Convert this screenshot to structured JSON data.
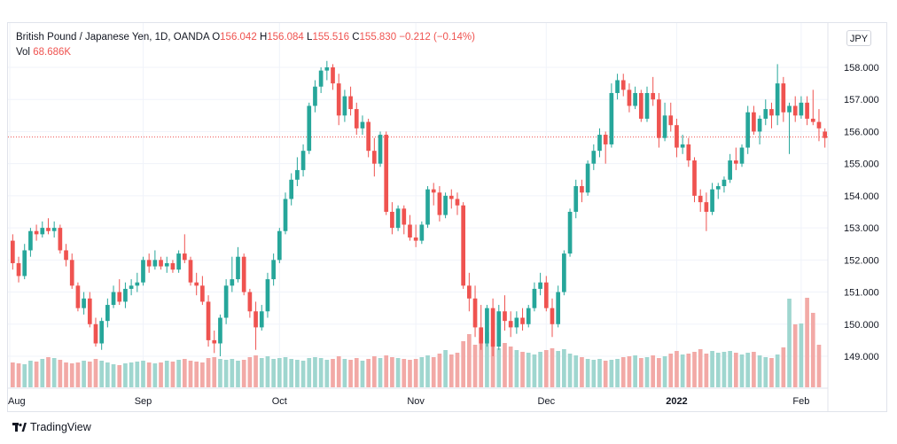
{
  "legend": {
    "symbol": "British Pound / Japanese Yen, 1D, OANDA",
    "o_label": "O",
    "o_val": "156.042",
    "h_label": "H",
    "h_val": "156.084",
    "l_label": "L",
    "l_val": "155.516",
    "c_label": "C",
    "c_val": "155.830",
    "chg": "−0.212 (−0.14%)",
    "vol_label": "Vol",
    "vol_val": "68.686K"
  },
  "currency_button": "JPY",
  "brand": "TradingView",
  "colors": {
    "up": "#26a69a",
    "down": "#ef5350",
    "vol_up": "#9fd6cf",
    "vol_down": "#f2a9a6",
    "grid": "#f0f3fa",
    "axis_text": "#131722"
  },
  "chart_data": {
    "type": "candlestick",
    "price_axis": {
      "ticks": [
        "149.000",
        "150.000",
        "151.000",
        "152.000",
        "153.000",
        "154.000",
        "155.000",
        "156.000",
        "157.000",
        "158.000"
      ],
      "range": [
        148.4,
        158.9
      ]
    },
    "time_axis": {
      "labels": [
        "Aug",
        "Sep",
        "Oct",
        "Nov",
        "Dec",
        "2022",
        "Feb"
      ]
    },
    "last_price": 155.83,
    "ohlc": [
      [
        152.6,
        152.8,
        151.7,
        151.9
      ],
      [
        151.9,
        152.1,
        151.3,
        151.5
      ],
      [
        151.5,
        152.5,
        151.4,
        152.3
      ],
      [
        152.3,
        153.0,
        152.1,
        152.9
      ],
      [
        152.9,
        153.1,
        152.6,
        152.8
      ],
      [
        152.8,
        153.2,
        152.7,
        153.0
      ],
      [
        153.0,
        153.3,
        152.8,
        152.9
      ],
      [
        152.9,
        153.2,
        152.7,
        153.0
      ],
      [
        153.0,
        153.1,
        152.2,
        152.3
      ],
      [
        152.3,
        152.5,
        151.8,
        152.0
      ],
      [
        152.0,
        152.2,
        151.1,
        151.2
      ],
      [
        151.2,
        151.3,
        150.4,
        150.5
      ],
      [
        150.5,
        151.0,
        150.3,
        150.8
      ],
      [
        150.8,
        151.0,
        149.9,
        150.0
      ],
      [
        150.0,
        150.2,
        149.3,
        149.4
      ],
      [
        149.4,
        150.2,
        149.2,
        150.1
      ],
      [
        150.1,
        150.8,
        149.9,
        150.6
      ],
      [
        150.6,
        151.2,
        150.5,
        151.0
      ],
      [
        151.0,
        151.4,
        150.6,
        150.7
      ],
      [
        150.7,
        151.3,
        150.5,
        151.1
      ],
      [
        151.1,
        151.4,
        150.9,
        151.2
      ],
      [
        151.2,
        151.6,
        151.0,
        151.3
      ],
      [
        151.3,
        152.1,
        151.2,
        152.0
      ],
      [
        152.0,
        152.2,
        151.6,
        151.8
      ],
      [
        151.8,
        152.3,
        151.7,
        152.0
      ],
      [
        152.0,
        152.1,
        151.7,
        151.8
      ],
      [
        151.8,
        152.1,
        151.6,
        151.9
      ],
      [
        151.9,
        152.0,
        151.6,
        151.7
      ],
      [
        151.7,
        152.3,
        151.6,
        152.2
      ],
      [
        152.2,
        152.8,
        151.9,
        152.0
      ],
      [
        152.0,
        152.1,
        151.2,
        151.3
      ],
      [
        151.3,
        151.6,
        150.9,
        151.2
      ],
      [
        151.2,
        151.5,
        150.6,
        150.7
      ],
      [
        150.7,
        150.9,
        149.3,
        149.5
      ],
      [
        149.5,
        149.8,
        149.1,
        149.4
      ],
      [
        149.4,
        150.3,
        149.0,
        150.2
      ],
      [
        150.2,
        151.4,
        150.0,
        151.2
      ],
      [
        151.2,
        152.1,
        151.0,
        151.4
      ],
      [
        151.4,
        152.4,
        151.3,
        152.1
      ],
      [
        152.1,
        152.2,
        150.9,
        151.0
      ],
      [
        151.0,
        151.1,
        150.2,
        150.4
      ],
      [
        150.4,
        150.7,
        149.2,
        149.9
      ],
      [
        149.9,
        150.6,
        149.8,
        150.4
      ],
      [
        150.4,
        151.6,
        150.2,
        151.4
      ],
      [
        151.4,
        152.2,
        151.2,
        152.0
      ],
      [
        152.0,
        153.0,
        151.9,
        152.9
      ],
      [
        152.9,
        154.1,
        152.8,
        153.9
      ],
      [
        153.9,
        154.7,
        153.7,
        154.5
      ],
      [
        154.5,
        155.2,
        154.3,
        154.8
      ],
      [
        154.8,
        155.6,
        154.6,
        155.4
      ],
      [
        155.4,
        156.9,
        155.3,
        156.8
      ],
      [
        156.8,
        157.6,
        156.6,
        157.4
      ],
      [
        157.4,
        158.0,
        157.2,
        157.9
      ],
      [
        157.9,
        158.2,
        157.6,
        158.0
      ],
      [
        158.0,
        158.1,
        157.3,
        157.5
      ],
      [
        157.5,
        157.8,
        156.2,
        156.5
      ],
      [
        156.5,
        157.3,
        156.3,
        157.1
      ],
      [
        157.1,
        157.4,
        156.5,
        156.7
      ],
      [
        156.7,
        156.9,
        155.9,
        156.1
      ],
      [
        156.1,
        156.5,
        155.9,
        156.3
      ],
      [
        156.3,
        156.4,
        155.2,
        155.4
      ],
      [
        155.4,
        155.8,
        154.6,
        155.0
      ],
      [
        155.0,
        156.0,
        154.9,
        155.9
      ],
      [
        155.9,
        156.0,
        153.4,
        153.5
      ],
      [
        153.5,
        153.8,
        152.8,
        153.0
      ],
      [
        153.0,
        153.7,
        152.9,
        153.6
      ],
      [
        153.6,
        153.7,
        152.8,
        153.1
      ],
      [
        153.1,
        153.4,
        152.6,
        152.7
      ],
      [
        152.7,
        153.1,
        152.4,
        152.6
      ],
      [
        152.6,
        153.2,
        152.5,
        153.1
      ],
      [
        153.1,
        154.3,
        153.0,
        154.2
      ],
      [
        154.2,
        154.4,
        153.7,
        154.1
      ],
      [
        154.1,
        154.3,
        153.2,
        153.4
      ],
      [
        153.4,
        154.1,
        153.3,
        154.0
      ],
      [
        154.0,
        154.2,
        153.6,
        153.9
      ],
      [
        153.9,
        154.1,
        153.4,
        153.7
      ],
      [
        153.7,
        153.8,
        151.1,
        151.2
      ],
      [
        151.2,
        151.6,
        150.4,
        150.8
      ],
      [
        150.8,
        151.2,
        149.6,
        149.9
      ],
      [
        149.9,
        150.6,
        149.2,
        149.4
      ],
      [
        149.4,
        150.6,
        149.3,
        150.5
      ],
      [
        150.5,
        150.8,
        149.0,
        149.3
      ],
      [
        149.3,
        150.6,
        149.2,
        150.4
      ],
      [
        150.4,
        150.9,
        149.8,
        150.1
      ],
      [
        150.1,
        150.4,
        149.6,
        149.9
      ],
      [
        149.9,
        150.4,
        149.7,
        150.2
      ],
      [
        150.2,
        150.5,
        149.8,
        150.0
      ],
      [
        150.0,
        150.6,
        149.9,
        150.5
      ],
      [
        150.5,
        151.3,
        150.4,
        151.1
      ],
      [
        151.1,
        151.6,
        150.9,
        151.3
      ],
      [
        151.3,
        151.5,
        150.4,
        150.5
      ],
      [
        150.5,
        150.8,
        149.6,
        150.0
      ],
      [
        150.0,
        151.2,
        149.9,
        151.0
      ],
      [
        151.0,
        152.3,
        150.9,
        152.2
      ],
      [
        152.2,
        153.6,
        152.1,
        153.5
      ],
      [
        153.5,
        154.5,
        153.3,
        154.3
      ],
      [
        154.3,
        154.5,
        153.8,
        154.1
      ],
      [
        154.1,
        155.1,
        154.0,
        155.0
      ],
      [
        155.0,
        155.6,
        154.8,
        155.4
      ],
      [
        155.4,
        156.1,
        155.2,
        155.9
      ],
      [
        155.9,
        156.0,
        155.0,
        155.6
      ],
      [
        155.6,
        157.5,
        155.5,
        157.2
      ],
      [
        157.2,
        157.8,
        157.0,
        157.6
      ],
      [
        157.6,
        157.8,
        157.1,
        157.3
      ],
      [
        157.3,
        157.5,
        156.6,
        156.8
      ],
      [
        156.8,
        157.4,
        156.7,
        157.2
      ],
      [
        157.2,
        157.3,
        156.3,
        156.4
      ],
      [
        156.4,
        157.4,
        156.3,
        157.2
      ],
      [
        157.2,
        157.7,
        156.8,
        157.0
      ],
      [
        157.0,
        157.2,
        155.5,
        155.8
      ],
      [
        155.8,
        156.9,
        155.7,
        156.5
      ],
      [
        156.5,
        156.9,
        156.0,
        156.2
      ],
      [
        156.2,
        156.4,
        155.2,
        155.5
      ],
      [
        155.5,
        155.9,
        155.3,
        155.6
      ],
      [
        155.6,
        155.8,
        154.9,
        155.1
      ],
      [
        155.1,
        155.2,
        153.8,
        154.0
      ],
      [
        154.0,
        154.2,
        153.5,
        153.8
      ],
      [
        153.8,
        154.1,
        152.9,
        153.5
      ],
      [
        153.5,
        154.4,
        153.4,
        154.2
      ],
      [
        154.2,
        154.4,
        153.9,
        154.3
      ],
      [
        154.3,
        154.6,
        154.1,
        154.5
      ],
      [
        154.5,
        155.3,
        154.4,
        155.1
      ],
      [
        155.1,
        155.5,
        154.8,
        155.0
      ],
      [
        155.0,
        155.6,
        154.9,
        155.5
      ],
      [
        155.5,
        156.8,
        155.3,
        156.6
      ],
      [
        156.6,
        156.8,
        155.9,
        156.0
      ],
      [
        156.0,
        156.5,
        155.6,
        156.4
      ],
      [
        156.4,
        157.0,
        156.2,
        156.7
      ],
      [
        156.7,
        156.9,
        156.1,
        156.5
      ],
      [
        156.5,
        158.1,
        156.2,
        157.5
      ],
      [
        157.5,
        157.7,
        156.3,
        156.6
      ],
      [
        156.6,
        156.9,
        155.3,
        156.8
      ],
      [
        156.8,
        157.1,
        156.3,
        156.5
      ],
      [
        156.5,
        157.1,
        156.4,
        156.9
      ],
      [
        156.9,
        157.1,
        156.2,
        156.4
      ],
      [
        156.4,
        157.3,
        156.2,
        156.3
      ],
      [
        156.3,
        156.7,
        155.7,
        156.1
      ],
      [
        156.0,
        156.1,
        155.5,
        155.8
      ]
    ],
    "volume": [
      14.0,
      13.5,
      13.0,
      15.0,
      14.5,
      16.0,
      17.0,
      16.5,
      15.5,
      14.0,
      13.5,
      14.0,
      15.0,
      14.5,
      16.0,
      15.0,
      14.0,
      13.0,
      12.5,
      13.5,
      14.0,
      14.5,
      15.0,
      14.0,
      13.5,
      14.0,
      15.0,
      14.5,
      15.5,
      16.0,
      15.0,
      14.5,
      14.0,
      16.5,
      17.0,
      16.0,
      15.5,
      16.0,
      15.0,
      15.5,
      17.0,
      18.0,
      16.5,
      17.5,
      16.0,
      16.5,
      17.0,
      16.0,
      15.5,
      15.0,
      16.5,
      17.0,
      16.5,
      15.5,
      16.0,
      17.5,
      16.0,
      15.5,
      16.5,
      15.0,
      16.0,
      17.5,
      16.5,
      18.0,
      17.0,
      16.5,
      16.0,
      15.5,
      16.0,
      17.0,
      18.0,
      17.0,
      19.0,
      21.0,
      18.5,
      19.5,
      26.0,
      30.0,
      24.0,
      28.0,
      31.0,
      27.0,
      22.0,
      25.0,
      23.0,
      21.0,
      20.0,
      19.5,
      18.5,
      20.0,
      21.0,
      22.0,
      20.5,
      21.5,
      19.0,
      18.0,
      17.0,
      16.0,
      15.5,
      16.0,
      15.0,
      15.5,
      16.0,
      17.0,
      17.5,
      18.0,
      16.5,
      17.0,
      18.0,
      16.5,
      17.5,
      19.0,
      20.5,
      18.5,
      19.0,
      20.0,
      21.5,
      19.0,
      20.5,
      19.5,
      20.0,
      20.5,
      19.5,
      18.5,
      19.5,
      20.0,
      18.0,
      17.0,
      16.5,
      18.5,
      22.5,
      50.0,
      35.5,
      36.0,
      50.5,
      42.0,
      24.0
    ]
  }
}
